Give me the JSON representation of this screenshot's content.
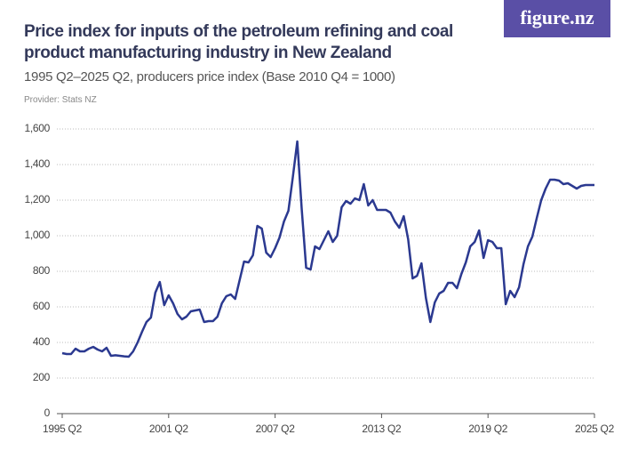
{
  "header": {
    "logo": "figure.nz"
  },
  "chart_data": {
    "type": "line",
    "title": "Price index for inputs of the petroleum refining and coal product manufacturing industry in New Zealand",
    "subtitle": "1995 Q2–2025 Q2, producers price index (Base 2010 Q4 = 1000)",
    "provider": "Provider: Stats NZ",
    "color": "#2b3990",
    "grid": true,
    "ylim": [
      0,
      1600
    ],
    "yticks": [
      0,
      200,
      400,
      600,
      800,
      {
        "value": 1000,
        "label": "1,000"
      },
      {
        "value": 1200,
        "label": "1,200"
      },
      {
        "value": 1400,
        "label": "1,400"
      },
      {
        "value": 1600,
        "label": "1,600"
      }
    ],
    "categories": [
      "1995 Q2",
      null,
      null,
      null,
      null,
      null,
      null,
      null,
      null,
      null,
      null,
      null,
      null,
      null,
      null,
      null,
      null,
      null,
      null,
      null,
      null,
      null,
      null,
      null,
      "2001 Q2",
      null,
      null,
      null,
      null,
      null,
      null,
      null,
      null,
      null,
      null,
      null,
      null,
      null,
      null,
      null,
      null,
      null,
      null,
      null,
      null,
      null,
      null,
      null,
      "2007 Q2",
      null,
      null,
      null,
      null,
      null,
      null,
      null,
      null,
      null,
      null,
      null,
      null,
      null,
      null,
      null,
      null,
      null,
      null,
      null,
      null,
      null,
      null,
      null,
      "2013 Q2",
      null,
      null,
      null,
      null,
      null,
      null,
      null,
      null,
      null,
      null,
      null,
      null,
      null,
      null,
      null,
      null,
      null,
      null,
      null,
      null,
      null,
      null,
      null,
      "2019 Q2",
      null,
      null,
      null,
      null,
      null,
      null,
      null,
      null,
      null,
      null,
      null,
      null,
      null,
      null,
      null,
      null,
      null,
      null,
      null,
      null,
      null,
      null,
      null,
      "2025 Q2"
    ],
    "values": [
      340,
      335,
      335,
      365,
      350,
      350,
      365,
      375,
      360,
      350,
      370,
      325,
      328,
      325,
      322,
      320,
      350,
      400,
      460,
      515,
      540,
      680,
      740,
      610,
      665,
      620,
      560,
      530,
      545,
      575,
      580,
      585,
      515,
      520,
      520,
      545,
      620,
      660,
      670,
      645,
      750,
      855,
      850,
      890,
      1055,
      1040,
      905,
      880,
      930,
      990,
      1080,
      1140,
      1330,
      1530,
      1150,
      820,
      810,
      940,
      925,
      975,
      1025,
      965,
      1000,
      1160,
      1195,
      1180,
      1210,
      1200,
      1290,
      1170,
      1200,
      1145,
      1145,
      1145,
      1130,
      1080,
      1045,
      1110,
      980,
      760,
      775,
      845,
      650,
      515,
      625,
      675,
      690,
      735,
      735,
      705,
      785,
      850,
      940,
      965,
      1030,
      875,
      975,
      965,
      930,
      930,
      615,
      690,
      655,
      710,
      840,
      940,
      995,
      1100,
      1200,
      1265,
      1315,
      1315,
      1310,
      1290,
      1295,
      1280,
      1265,
      1280,
      1285,
      1285,
      1285
    ]
  }
}
